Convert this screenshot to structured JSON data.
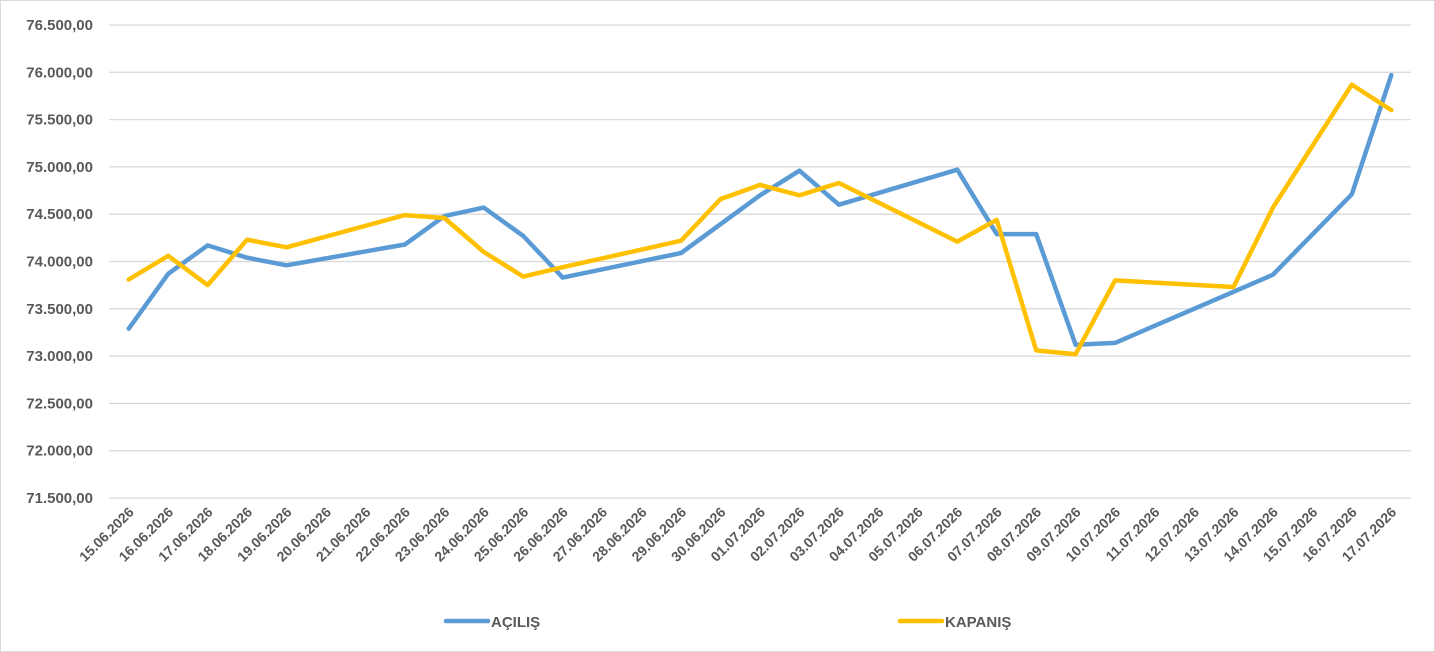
{
  "chart_data": {
    "type": "line",
    "title": "",
    "xlabel": "",
    "ylabel": "",
    "ylim": [
      71500,
      76500
    ],
    "yticks": [
      76500,
      76000,
      75500,
      75000,
      74500,
      74000,
      73500,
      73000,
      72500,
      72000,
      71500
    ],
    "ytick_labels": [
      "76.500,00",
      "76.000,00",
      "75.500,00",
      "75.000,00",
      "74.500,00",
      "74.000,00",
      "73.500,00",
      "73.000,00",
      "72.500,00",
      "72.000,00",
      "71.500,00"
    ],
    "grid": true,
    "legend_position": "bottom",
    "categories": [
      "15.06.2026",
      "16.06.2026",
      "17.06.2026",
      "18.06.2026",
      "19.06.2026",
      "20.06.2026",
      "21.06.2026",
      "22.06.2026",
      "23.06.2026",
      "24.06.2026",
      "25.06.2026",
      "26.06.2026",
      "27.06.2026",
      "28.06.2026",
      "29.06.2026",
      "30.06.2026",
      "01.07.2026",
      "02.07.2026",
      "03.07.2026",
      "04.07.2026",
      "05.07.2026",
      "06.07.2026",
      "07.07.2026",
      "08.07.2026",
      "09.07.2026",
      "10.07.2026",
      "11.07.2026",
      "12.07.2026",
      "13.07.2026",
      "14.07.2026",
      "15.07.2026",
      "16.07.2026",
      "17.07.2026"
    ],
    "series": [
      {
        "name": "AÇILIŞ",
        "color": "#5b9bd5",
        "points": [
          [
            0,
            73290
          ],
          [
            1,
            73870
          ],
          [
            2,
            74170
          ],
          [
            3,
            74040
          ],
          [
            4,
            73960
          ],
          [
            7,
            74180
          ],
          [
            8,
            74480
          ],
          [
            9,
            74570
          ],
          [
            10,
            74270
          ],
          [
            11,
            73830
          ],
          [
            14,
            74090
          ],
          [
            16,
            74700
          ],
          [
            17,
            74960
          ],
          [
            18,
            74600
          ],
          [
            21,
            74970
          ],
          [
            22,
            74290
          ],
          [
            23,
            74290
          ],
          [
            24,
            73120
          ],
          [
            25,
            73140
          ],
          [
            28,
            73680
          ],
          [
            29,
            73860
          ],
          [
            31,
            74710
          ],
          [
            32,
            75970
          ]
        ]
      },
      {
        "name": "KAPANIŞ",
        "color": "#ffc000",
        "points": [
          [
            0,
            73810
          ],
          [
            1,
            74060
          ],
          [
            2,
            73750
          ],
          [
            3,
            74230
          ],
          [
            4,
            74150
          ],
          [
            7,
            74490
          ],
          [
            8,
            74460
          ],
          [
            9,
            74100
          ],
          [
            10,
            73840
          ],
          [
            11,
            73940
          ],
          [
            14,
            74220
          ],
          [
            15,
            74660
          ],
          [
            16,
            74810
          ],
          [
            17,
            74700
          ],
          [
            18,
            74830
          ],
          [
            21,
            74210
          ],
          [
            22,
            74440
          ],
          [
            23,
            73060
          ],
          [
            24,
            73020
          ],
          [
            25,
            73800
          ],
          [
            28,
            73730
          ],
          [
            29,
            74570
          ],
          [
            31,
            75870
          ],
          [
            32,
            75600
          ]
        ]
      }
    ]
  }
}
